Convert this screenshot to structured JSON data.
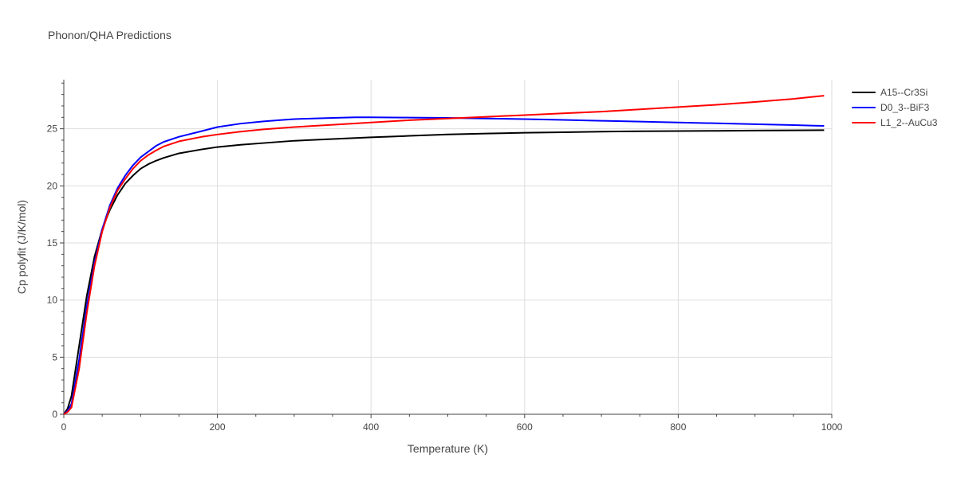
{
  "chart_data": {
    "type": "line",
    "title": "Phonon/QHA Predictions",
    "xlabel": "Temperature (K)",
    "ylabel": "Cp polyfit (J/K/mol)",
    "xlim": [
      0,
      1000
    ],
    "ylim": [
      0,
      29.3
    ],
    "xticks": [
      0,
      200,
      400,
      600,
      800,
      1000
    ],
    "yticks": [
      0,
      5,
      10,
      15,
      20,
      25
    ],
    "grid": true,
    "legend_position": "top-right",
    "series": [
      {
        "name": "A15--Cr3Si",
        "color": "#000000",
        "x": [
          0,
          5,
          10,
          20,
          30,
          40,
          50,
          60,
          70,
          80,
          90,
          100,
          110,
          120,
          130,
          150,
          180,
          200,
          230,
          260,
          300,
          350,
          400,
          450,
          500,
          550,
          600,
          650,
          700,
          750,
          800,
          850,
          900,
          950,
          990
        ],
        "y": [
          0,
          0.5,
          1.6,
          6.0,
          10.4,
          13.8,
          16.2,
          17.9,
          19.2,
          20.2,
          20.9,
          21.5,
          21.9,
          22.2,
          22.45,
          22.85,
          23.2,
          23.4,
          23.6,
          23.75,
          23.95,
          24.1,
          24.25,
          24.38,
          24.5,
          24.58,
          24.65,
          24.7,
          24.75,
          24.78,
          24.8,
          24.82,
          24.84,
          24.86,
          24.88
        ]
      },
      {
        "name": "D0_3--BiF3",
        "color": "#0000ff",
        "x": [
          0,
          5,
          10,
          20,
          30,
          40,
          50,
          60,
          70,
          80,
          90,
          100,
          110,
          120,
          130,
          150,
          180,
          200,
          230,
          260,
          280,
          300,
          350,
          380,
          400,
          450,
          500,
          550,
          600,
          650,
          700,
          750,
          800,
          850,
          900,
          950,
          990
        ],
        "y": [
          0,
          0.3,
          0.9,
          4.8,
          9.5,
          13.3,
          16.2,
          18.3,
          19.8,
          20.9,
          21.8,
          22.5,
          23.0,
          23.5,
          23.85,
          24.3,
          24.8,
          25.15,
          25.45,
          25.65,
          25.75,
          25.85,
          25.95,
          26.0,
          26.0,
          25.98,
          25.95,
          25.9,
          25.85,
          25.78,
          25.7,
          25.63,
          25.55,
          25.48,
          25.4,
          25.32,
          25.25
        ]
      },
      {
        "name": "L1_2--AuCu3",
        "color": "#ff0000",
        "x": [
          0,
          5,
          10,
          20,
          30,
          40,
          50,
          60,
          70,
          80,
          90,
          100,
          110,
          120,
          130,
          150,
          180,
          200,
          230,
          260,
          300,
          350,
          400,
          450,
          500,
          550,
          600,
          650,
          700,
          720,
          750,
          800,
          850,
          870,
          900,
          950,
          990
        ],
        "y": [
          0,
          0.2,
          0.6,
          4.0,
          8.9,
          13.0,
          16.0,
          18.1,
          19.6,
          20.6,
          21.5,
          22.2,
          22.7,
          23.1,
          23.45,
          23.9,
          24.3,
          24.5,
          24.75,
          24.95,
          25.15,
          25.35,
          25.55,
          25.75,
          25.9,
          26.05,
          26.2,
          26.35,
          26.5,
          26.58,
          26.7,
          26.9,
          27.1,
          27.2,
          27.35,
          27.62,
          27.9
        ]
      }
    ]
  }
}
